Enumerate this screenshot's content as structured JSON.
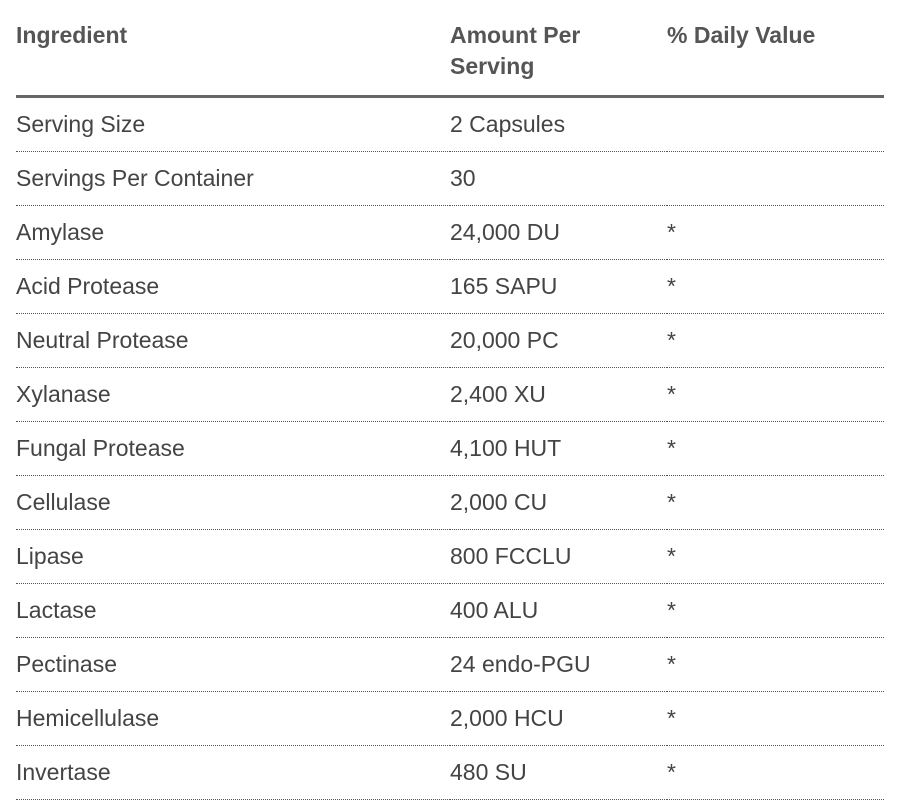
{
  "table": {
    "headers": [
      "Ingredient",
      "Amount Per Serving",
      "% Daily Value"
    ],
    "rows": [
      [
        "Serving Size",
        "2 Capsules"
      ],
      [
        "Servings Per Container",
        "30"
      ],
      [
        "Amylase",
        "24,000 DU",
        "*"
      ],
      [
        "Acid Protease",
        "165 SAPU",
        "*"
      ],
      [
        "Neutral Protease",
        "20,000 PC",
        "*"
      ],
      [
        "Xylanase",
        "2,400 XU",
        "*"
      ],
      [
        "Fungal Protease",
        "4,100 HUT",
        "*"
      ],
      [
        "Cellulase",
        "2,000 CU",
        "*"
      ],
      [
        "Lipase",
        "800 FCCLU",
        "*"
      ],
      [
        "Lactase",
        "400 ALU",
        "*"
      ],
      [
        "Pectinase",
        "24 endo-PGU",
        "*"
      ],
      [
        "Hemicellulase",
        "2,000 HCU",
        "*"
      ],
      [
        "Invertase",
        "480 SU",
        "*"
      ]
    ]
  }
}
